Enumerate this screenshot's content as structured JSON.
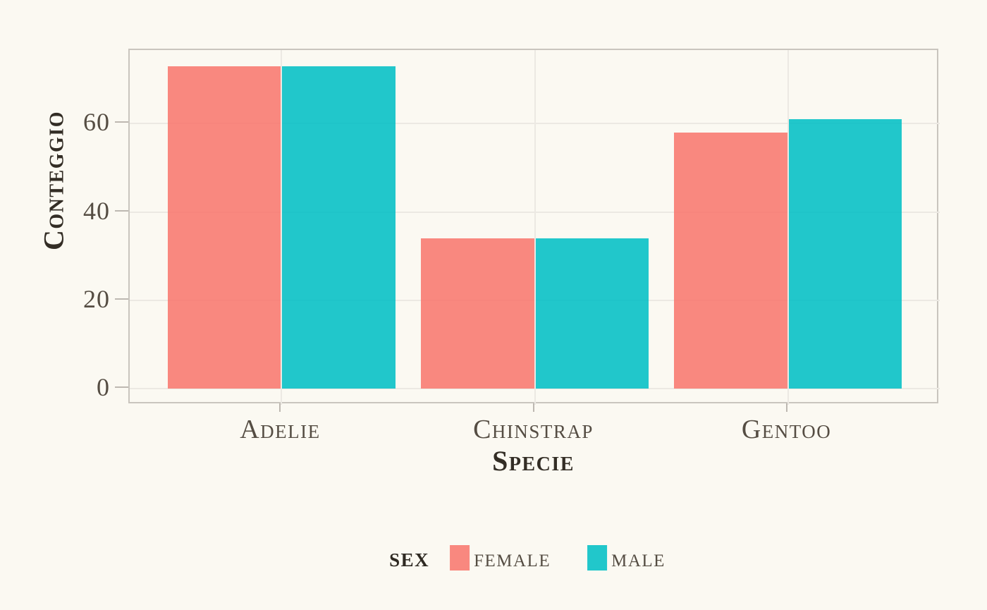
{
  "chart_data": {
    "type": "bar",
    "grouping": "dodged",
    "title": "",
    "categories": [
      "Adelie",
      "Chinstrap",
      "Gentoo"
    ],
    "series": [
      {
        "name": "female",
        "color": "#F8766D",
        "values": [
          73,
          34,
          58
        ]
      },
      {
        "name": "male",
        "color": "#00BFC4",
        "values": [
          73,
          34,
          61
        ]
      }
    ],
    "bar_alpha": 0.87,
    "bar_group_width": 0.9,
    "xlabel": "Specie",
    "ylabel": "Conteggio",
    "yticks": [
      0,
      20,
      40,
      60
    ],
    "ylim": [
      -3.65,
      76.65
    ],
    "xdomain": [
      0.4,
      3.6
    ],
    "grid": {
      "horizontal": true,
      "vertical": true,
      "color": "#ECE9E3"
    },
    "legend": {
      "title": "sex",
      "position": "bottom",
      "entries": [
        {
          "label": "female",
          "color": "#F8766D"
        },
        {
          "label": "male",
          "color": "#00BFC4"
        }
      ]
    }
  },
  "style": {
    "background": "#FBF9F2",
    "panel_border": "#C9C5BE",
    "tick_color": "#BDB8B1",
    "tick_label_color": "#554D43",
    "axis_title_color": "#332D25"
  }
}
